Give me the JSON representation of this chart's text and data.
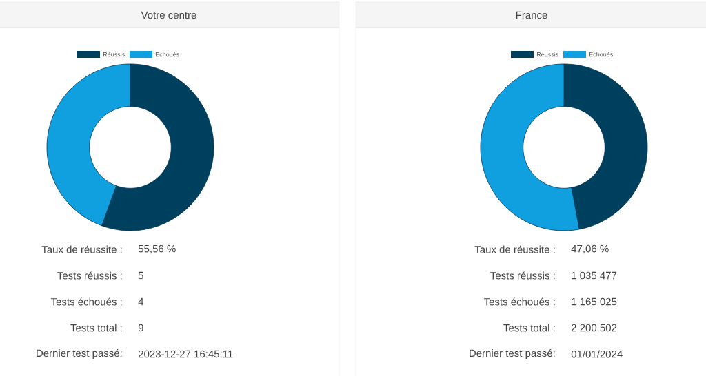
{
  "chart_data": [
    {
      "type": "donut",
      "title": "Votre centre",
      "categories": [
        "Réussis",
        "Echoués"
      ],
      "values": [
        55.56,
        44.44
      ],
      "colors": [
        "#00405f",
        "#10a0df"
      ],
      "legend": "top",
      "annotations": [
        "Taux de réussite :",
        "55,56 %",
        "Tests réussis :",
        "5",
        "Tests échoués :",
        "4",
        "Tests total :",
        "9",
        "Dernier test passé:",
        "2023-12-27 16:45:11"
      ]
    },
    {
      "type": "donut",
      "title": "France",
      "categories": [
        "Réussis",
        "Echoués"
      ],
      "values": [
        47.06,
        52.94
      ],
      "colors": [
        "#00405f",
        "#10a0df"
      ],
      "legend": "top",
      "annotations": [
        "Taux de réussite :",
        "47,06 %",
        "Tests réussis :",
        "1 035 477",
        "Tests échoués :",
        "1 165 025",
        "Tests total :",
        "2 200 502",
        "Dernier test passé:",
        "01/01/2024"
      ]
    }
  ]
}
